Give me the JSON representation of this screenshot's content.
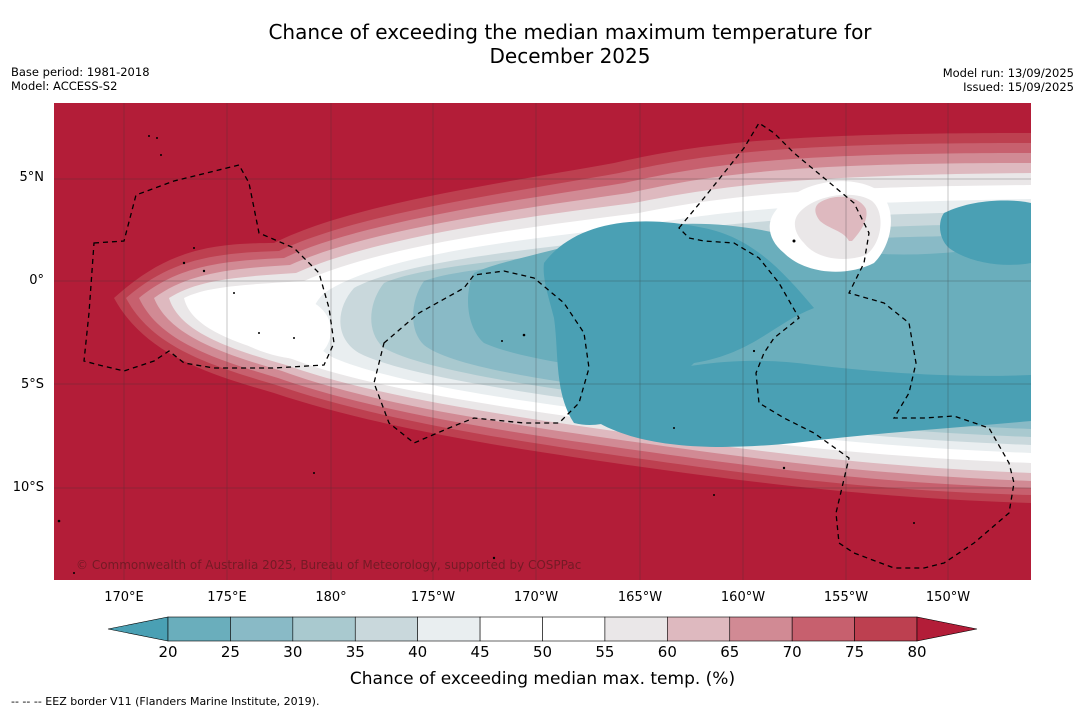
{
  "header": {
    "title_line1": "Chance of exceeding the median maximum temperature for",
    "title_line2": "December 2025",
    "base_period": "Base period: 1981-2018",
    "model": "Model: ACCESS-S2",
    "model_run": "Model run: 13/09/2025",
    "issued": "Issued: 15/09/2025"
  },
  "map": {
    "copyright": "© Commonwealth of Australia 2025, Bureau of Meteorology, supported by COSPPac",
    "lat_labels": [
      "5°N",
      "0°",
      "5°S",
      "10°S"
    ],
    "lon_labels": [
      "170°E",
      "175°E",
      "180°",
      "175°W",
      "170°W",
      "165°W",
      "160°W",
      "155°W",
      "150°W"
    ],
    "land_color": "#b31d38",
    "cool_color": "#4aa0b4"
  },
  "colorbar": {
    "ticks": [
      "20",
      "25",
      "30",
      "35",
      "40",
      "45",
      "50",
      "55",
      "60",
      "65",
      "70",
      "75",
      "80"
    ],
    "colors": [
      "#4aa0b4",
      "#6aaebc",
      "#89bac6",
      "#a9c9cf",
      "#c9d8dc",
      "#e9eef0",
      "#ffffff",
      "#ffffff",
      "#eae7e8",
      "#deb9bf",
      "#d18a94",
      "#c7606e",
      "#bd4050",
      "#b31d38"
    ],
    "label": "Chance of exceeding median max. temp. (%)"
  },
  "footer": {
    "legend_text": "--  --  -- EEZ border V11 (Flanders Marine Institute, 2019)."
  }
}
